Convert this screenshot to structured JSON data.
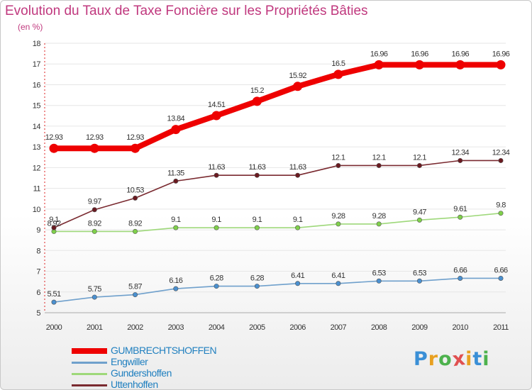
{
  "title": "Evolution du Taux de Taxe Foncière sur les Propriétés Bâties",
  "subtitle": "(en %)",
  "logo": {
    "text": "Proxiti",
    "letters": [
      "P",
      "r",
      "o",
      "x",
      "i",
      "t",
      "i"
    ],
    "colors": [
      "#3a8fd6",
      "#e8a020",
      "#4db24d",
      "#e05050",
      "#e8a020",
      "#3a8fd6",
      "#4db24d"
    ]
  },
  "chart_data": {
    "type": "line",
    "categories": [
      "2000",
      "2001",
      "2002",
      "2003",
      "2004",
      "2005",
      "2006",
      "2007",
      "2008",
      "2009",
      "2010",
      "2011"
    ],
    "ylim": [
      5,
      18
    ],
    "yticks": [
      "5",
      "6",
      "7",
      "8",
      "9",
      "10",
      "11",
      "12",
      "13",
      "14",
      "15",
      "16",
      "17",
      "18"
    ],
    "xlabel": "",
    "ylabel": "",
    "grid": "horizontal",
    "legend_position": "bottom-left",
    "series": [
      {
        "name": "GUMBRECHTSHOFFEN",
        "values": [
          12.93,
          12.93,
          12.93,
          13.84,
          14.51,
          15.2,
          15.92,
          16.5,
          16.96,
          16.96,
          16.96,
          16.96
        ],
        "labels": [
          "12.93",
          "12.93",
          "12.93",
          "13.84",
          "14.51",
          "15.2",
          "15.92",
          "16.5",
          "16.96",
          "16.96",
          "16.96",
          "16.96"
        ],
        "color": "#ee0000",
        "marker_color": "#ee0000",
        "emphasis": true
      },
      {
        "name": "Engwiller",
        "values": [
          5.51,
          5.75,
          5.87,
          6.16,
          6.28,
          6.28,
          6.41,
          6.41,
          6.53,
          6.53,
          6.66,
          6.66
        ],
        "labels": [
          "5.51",
          "5.75",
          "5.87",
          "6.16",
          "6.28",
          "6.28",
          "6.41",
          "6.41",
          "6.53",
          "6.53",
          "6.66",
          "6.66"
        ],
        "color": "#6fa0cc",
        "marker_color": "#4a90d0",
        "emphasis": false
      },
      {
        "name": "Gundershoffen",
        "values": [
          8.92,
          8.92,
          8.92,
          9.1,
          9.1,
          9.1,
          9.1,
          9.28,
          9.28,
          9.47,
          9.61,
          9.8
        ],
        "labels": [
          "8.92",
          "8.92",
          "8.92",
          "9.1",
          "9.1",
          "9.1",
          "9.1",
          "9.28",
          "9.28",
          "9.47",
          "9.61",
          "9.8"
        ],
        "color": "#9ed87a",
        "marker_color": "#7fd04a",
        "emphasis": false
      },
      {
        "name": "Uttenhoffen",
        "values": [
          9.1,
          9.97,
          10.53,
          11.35,
          11.63,
          11.63,
          11.63,
          12.1,
          12.1,
          12.1,
          12.34,
          12.34
        ],
        "labels": [
          "9.1",
          "9.97",
          "10.53",
          "11.35",
          "11.63",
          "11.63",
          "11.63",
          "12.1",
          "12.1",
          "12.1",
          "12.34",
          "12.34"
        ],
        "color": "#7a2a30",
        "marker_color": "#6a1a20",
        "emphasis": false
      }
    ]
  }
}
